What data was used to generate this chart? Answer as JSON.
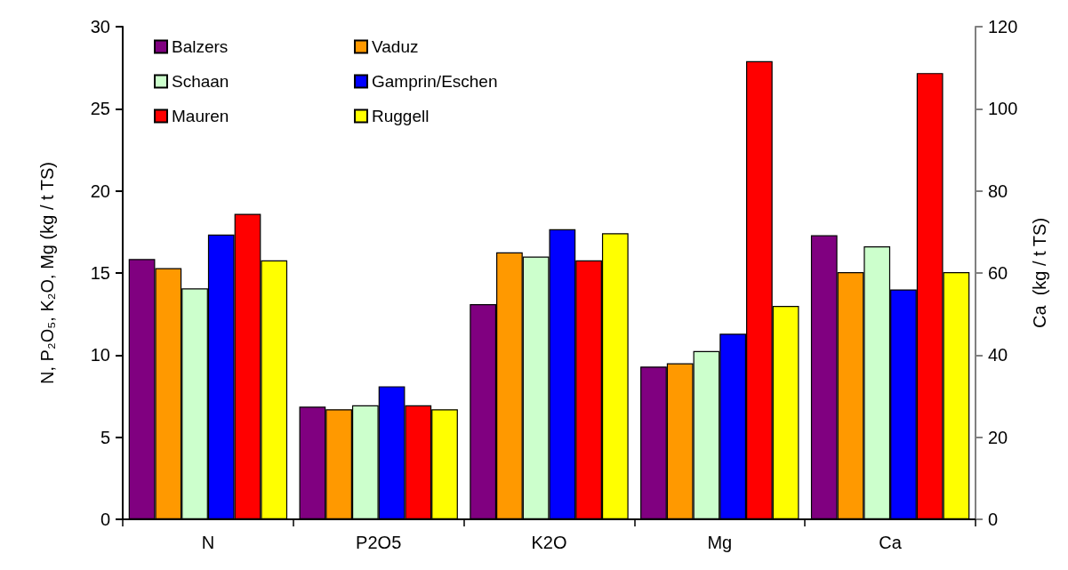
{
  "chart_data": {
    "type": "bar",
    "ylabel": "N, P₂O₅, K₂O, Mg (kg / t TS)",
    "y2label": "Ca  (kg / t TS)",
    "categories": [
      "N",
      "P2O5",
      "K2O",
      "Mg",
      "Ca"
    ],
    "ylim": [
      0,
      30
    ],
    "yticks": [
      0,
      5,
      10,
      15,
      20,
      25,
      30
    ],
    "y2lim": [
      0,
      120
    ],
    "y2ticks": [
      0,
      20,
      40,
      60,
      80,
      100,
      120
    ],
    "grid": false,
    "legend": "top left",
    "series": [
      {
        "name": "Balzers",
        "color": "#800080",
        "values": [
          15.85,
          6.86,
          13.1,
          9.3,
          null
        ]
      },
      {
        "name": "Vaduz",
        "color": "#ff9900",
        "values": [
          15.3,
          6.7,
          16.26,
          9.5,
          null
        ]
      },
      {
        "name": "Schaan",
        "color": "#ccffcc",
        "values": [
          14.06,
          6.94,
          16.0,
          10.25,
          null
        ]
      },
      {
        "name": "Gamprin/Eschen",
        "color": "#0000ff",
        "values": [
          17.34,
          8.1,
          17.67,
          11.3,
          null
        ]
      },
      {
        "name": "Mauren",
        "color": "#ff0000",
        "values": [
          18.6,
          6.94,
          15.77,
          27.9,
          null
        ]
      },
      {
        "name": "Ruggell",
        "color": "#ffff00",
        "values": [
          15.77,
          6.7,
          17.42,
          13.0,
          null
        ]
      },
      {
        "color": "#800080",
        "axis": "y2",
        "values": [
          null,
          null,
          null,
          null,
          69.2
        ]
      },
      {
        "color": "#ff9900",
        "axis": "y2",
        "values": [
          null,
          null,
          null,
          null,
          60.2
        ]
      },
      {
        "color": "#ccffcc",
        "axis": "y2",
        "values": [
          null,
          null,
          null,
          null,
          66.5
        ]
      },
      {
        "color": "#0000ff",
        "axis": "y2",
        "values": [
          null,
          null,
          null,
          null,
          56.0
        ]
      },
      {
        "color": "#ff0000",
        "axis": "y2",
        "values": [
          null,
          null,
          null,
          null,
          108.7
        ]
      },
      {
        "color": "#ffff00",
        "axis": "y2",
        "values": [
          null,
          null,
          null,
          null,
          60.2
        ]
      }
    ]
  }
}
